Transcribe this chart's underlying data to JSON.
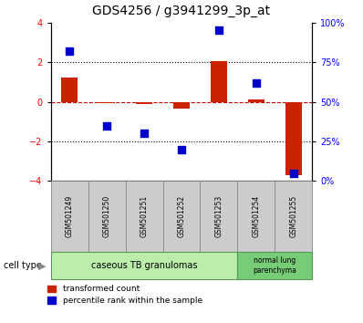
{
  "title": "GDS4256 / g3941299_3p_at",
  "samples": [
    "GSM501249",
    "GSM501250",
    "GSM501251",
    "GSM501252",
    "GSM501253",
    "GSM501254",
    "GSM501255"
  ],
  "transformed_count": [
    1.2,
    -0.05,
    -0.1,
    -0.35,
    2.05,
    0.1,
    -3.7
  ],
  "percentile_rank": [
    82,
    35,
    30,
    20,
    95,
    62,
    5
  ],
  "ylim_left": [
    -4,
    4
  ],
  "ylim_right": [
    0,
    100
  ],
  "yticks_left": [
    -4,
    -2,
    0,
    2,
    4
  ],
  "yticks_right": [
    0,
    25,
    50,
    75,
    100
  ],
  "bar_color": "#cc2200",
  "dot_color": "#0000cc",
  "zero_line_color": "#cc0000",
  "grid_color": "#000000",
  "bg_color": "#ffffff",
  "legend_red_label": "transformed count",
  "legend_blue_label": "percentile rank within the sample",
  "bar_width": 0.45,
  "dot_size": 30,
  "sample_box_color": "#cccccc",
  "sample_box_edge": "#888888",
  "ct1_color": "#bbeeaa",
  "ct2_color": "#77cc77",
  "ct_edge_color": "#559955"
}
